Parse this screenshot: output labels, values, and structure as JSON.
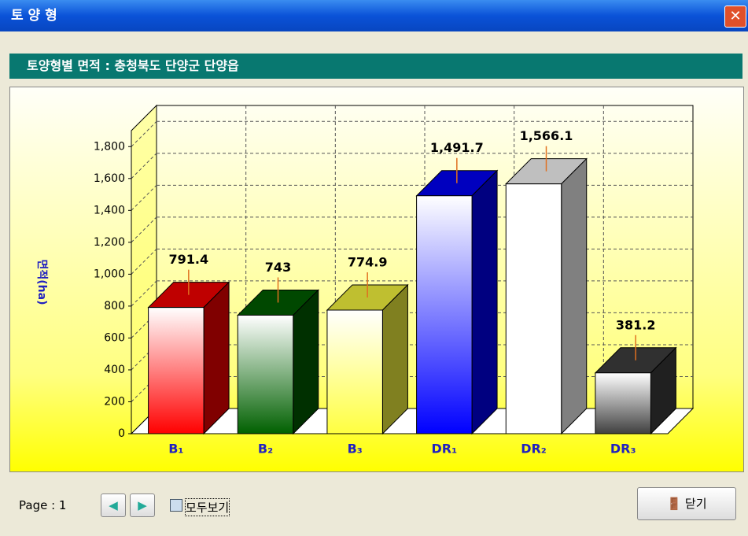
{
  "window": {
    "title": "토 양 형"
  },
  "header": "토양형별 면적 : 충청북도 단양군 단양읍",
  "footer": {
    "page": "Page : 1",
    "show_all": "모두보기",
    "close": "닫기"
  },
  "chart_data": {
    "type": "bar3d",
    "y_label": "면적(ha)",
    "categories": [
      "B₁",
      "B₂",
      "B₃",
      "DR₁",
      "DR₂",
      "DR₃"
    ],
    "values": [
      791.4,
      743,
      774.9,
      1491.7,
      1566.1,
      381.2
    ],
    "value_labels": [
      "791.4",
      "743",
      "774.9",
      "1,491.7",
      "1,566.1",
      "381.2"
    ],
    "colors": [
      "#ff0000",
      "#006000",
      "#ffff40",
      "#0000ff",
      "#ffffff",
      "#404040"
    ],
    "ylim": [
      0,
      1900
    ],
    "yticks": [
      0,
      200,
      400,
      600,
      800,
      {
        "value": 1000,
        "label": "1,000"
      },
      {
        "value": 1200,
        "label": "1,200"
      },
      {
        "value": 1400,
        "label": "1,400"
      },
      {
        "value": 1600,
        "label": "1,600"
      },
      {
        "value": 1800,
        "label": "1,800"
      }
    ],
    "grid": true
  }
}
